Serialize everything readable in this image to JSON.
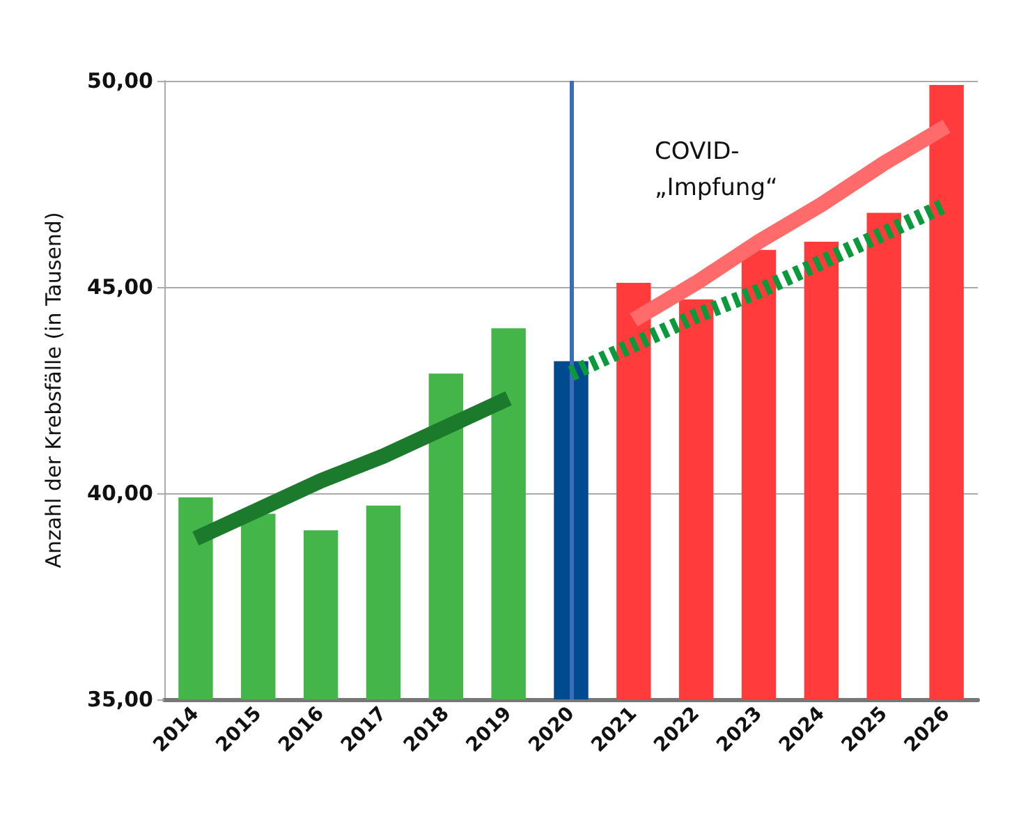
{
  "chart_data": {
    "type": "bar",
    "ylabel": "Anzahl der Krebsfälle (in Tausend)",
    "categories": [
      "2014",
      "2015",
      "2016",
      "2017",
      "2018",
      "2019",
      "2020",
      "2021",
      "2022",
      "2023",
      "2024",
      "2025",
      "2026"
    ],
    "series": [
      {
        "values": [
          39.9,
          39.5,
          39.1,
          39.7,
          42.9,
          44.0,
          43.2,
          45.1,
          44.7,
          45.9,
          46.1,
          46.8,
          49.9
        ],
        "colors": [
          "#44b549",
          "#44b549",
          "#44b549",
          "#44b549",
          "#44b549",
          "#44b549",
          "#004a8f",
          "#ff3b3b",
          "#ff3b3b",
          "#ff3b3b",
          "#ff3b3b",
          "#ff3b3b",
          "#ff3b3b"
        ]
      },
      {
        "type": "line",
        "values": [
          38.9,
          39.6,
          40.3,
          40.9,
          41.6,
          42.3,
          null,
          null,
          null,
          null,
          null,
          null,
          null
        ],
        "color": "#1b7a2b",
        "line_style": "solid"
      },
      {
        "type": "line",
        "values": [
          null,
          null,
          null,
          null,
          null,
          null,
          42.9,
          43.6,
          44.3,
          44.9,
          45.6,
          46.3,
          47.0
        ],
        "color": "#0b9a3b",
        "line_style": "dotted"
      },
      {
        "type": "line",
        "values": [
          null,
          null,
          null,
          null,
          null,
          null,
          null,
          44.2,
          45.1,
          46.1,
          47.0,
          48.0,
          48.9
        ],
        "color": "#ff6a6a",
        "line_style": "solid"
      }
    ],
    "ylim": [
      35,
      50
    ],
    "yticks": [
      {
        "value": 35,
        "label": "35,00"
      },
      {
        "value": 40,
        "label": "40,00"
      },
      {
        "value": 45,
        "label": "45,00"
      },
      {
        "value": 50,
        "label": "50,00"
      }
    ],
    "grid": "y",
    "ref_lines": [
      {
        "axis": "x",
        "value": "2020",
        "label": null,
        "color": "#3a6db5"
      }
    ],
    "annotations": [
      "COVID-\n„Impfung“"
    ]
  }
}
